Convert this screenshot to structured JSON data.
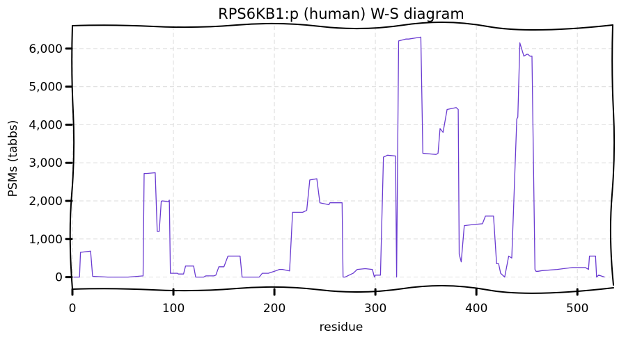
{
  "chart_data": {
    "type": "line",
    "title": "RPS6KB1:p (human) W-S diagram",
    "xlabel": "residue",
    "ylabel": "PSMs (tabbs)",
    "xlim": [
      0,
      535
    ],
    "ylim": [
      -300,
      6600
    ],
    "xticks": [
      0,
      100,
      200,
      300,
      400,
      500
    ],
    "xtick_labels": [
      "0",
      "100",
      "200",
      "300",
      "400",
      "500"
    ],
    "yticks": [
      0,
      1000,
      2000,
      3000,
      4000,
      5000,
      6000
    ],
    "ytick_labels": [
      "0",
      "1,000",
      "2,000",
      "3,000",
      "4,000",
      "5,000",
      "6,000"
    ],
    "grid": true,
    "legend": "none",
    "colors": {
      "series": "#6a3bd1",
      "grid": "#e2e2e2",
      "frame": "#000000"
    },
    "series": [
      {
        "x": [
          1,
          7,
          8,
          18,
          20,
          35,
          55,
          70,
          71,
          73,
          82,
          84,
          86,
          88,
          89,
          95,
          96,
          97,
          104,
          105,
          110,
          112,
          120,
          122,
          130,
          132,
          140,
          142,
          145,
          150,
          154,
          166,
          168,
          180,
          185,
          188,
          194,
          200,
          205,
          208,
          215,
          218,
          228,
          232,
          235,
          242,
          245,
          254,
          255,
          260,
          267,
          268,
          270,
          278,
          282,
          290,
          297,
          299,
          300,
          305,
          308,
          312,
          320,
          321,
          323,
          330,
          333,
          345,
          347,
          360,
          362,
          364,
          367,
          371,
          380,
          382,
          383,
          385,
          388,
          397,
          406,
          409,
          417,
          420,
          422,
          424,
          428,
          432,
          435,
          440,
          441,
          443,
          447,
          450,
          451,
          453,
          455,
          458,
          459,
          461,
          465,
          480,
          495,
          508,
          511,
          512,
          518,
          519,
          521,
          527
        ],
        "y": [
          0,
          0,
          650,
          680,
          20,
          0,
          0,
          30,
          2720,
          2720,
          2740,
          1200,
          1200,
          1990,
          2000,
          1980,
          2020,
          100,
          100,
          80,
          80,
          290,
          290,
          0,
          0,
          30,
          30,
          50,
          270,
          270,
          550,
          550,
          0,
          0,
          0,
          100,
          100,
          150,
          200,
          200,
          160,
          1700,
          1700,
          1750,
          2550,
          2580,
          1950,
          1900,
          1950,
          1950,
          1950,
          0,
          0,
          100,
          200,
          220,
          200,
          0,
          50,
          50,
          3150,
          3200,
          3180,
          0,
          6200,
          6250,
          6250,
          6300,
          3250,
          3220,
          3250,
          3900,
          3800,
          4400,
          4450,
          4400,
          600,
          400,
          1350,
          1380,
          1400,
          1600,
          1600,
          350,
          350,
          100,
          0,
          550,
          500,
          4150,
          4200,
          6150,
          5800,
          5850,
          5850,
          5800,
          5800,
          200,
          150,
          150,
          170,
          200,
          250,
          250,
          200,
          550,
          550,
          0,
          50,
          0
        ]
      }
    ]
  }
}
